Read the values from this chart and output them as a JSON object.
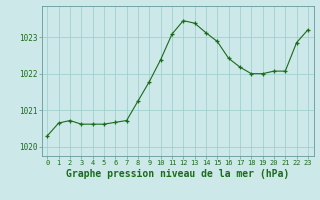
{
  "title": "Graphe pression niveau de la mer (hPa)",
  "x_values": [
    0,
    1,
    2,
    3,
    4,
    5,
    6,
    7,
    8,
    9,
    10,
    11,
    12,
    13,
    14,
    15,
    16,
    17,
    18,
    19,
    20,
    21,
    22,
    23
  ],
  "y_values": [
    1020.3,
    1020.65,
    1020.72,
    1020.62,
    1020.62,
    1020.62,
    1020.67,
    1020.72,
    1021.25,
    1021.78,
    1022.38,
    1023.08,
    1023.45,
    1023.38,
    1023.12,
    1022.88,
    1022.42,
    1022.18,
    1022.0,
    1022.0,
    1022.07,
    1022.07,
    1022.85,
    1023.2
  ],
  "line_color": "#1a6b1a",
  "marker_color": "#1a6b1a",
  "bg_color": "#cce8e8",
  "grid_color": "#99cccc",
  "tick_label_color": "#1a6b1a",
  "title_color": "#1a6b1a",
  "spine_color": "#669999",
  "ylim_min": 1019.75,
  "ylim_max": 1023.85,
  "yticks": [
    1020,
    1021,
    1022,
    1023
  ],
  "xtick_fontsize": 5.0,
  "ytick_fontsize": 5.5,
  "title_fontsize": 7.0
}
